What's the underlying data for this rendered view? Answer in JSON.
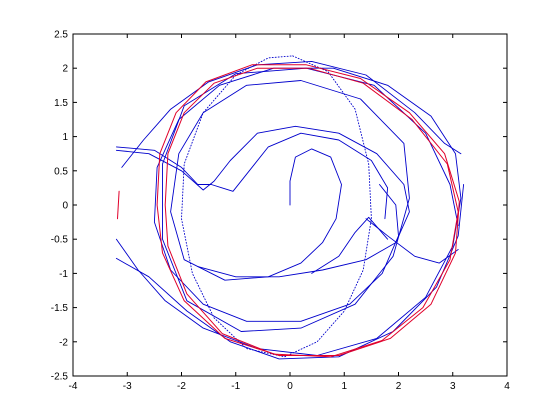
{
  "chart_data": {
    "type": "line",
    "xlim": [
      -4,
      4
    ],
    "ylim": [
      -2.5,
      2.5
    ],
    "x_ticks": [
      "-4",
      "-3",
      "-2",
      "-1",
      "0",
      "1",
      "2",
      "3",
      "4"
    ],
    "y_ticks": [
      "2.5",
      "2",
      "1.5",
      "1",
      "0.5",
      "0",
      "-0.5",
      "-1",
      "-1.5",
      "-2",
      "-2.5"
    ],
    "grid": false,
    "legend": "none",
    "colors": {
      "trajectory": "#0000cc",
      "limit_cycle": "#e0002a",
      "axes": "#000000"
    },
    "series": [
      {
        "style": "solid",
        "color": "trajectory",
        "points": [
          [
            0,
            0
          ],
          [
            0,
            0.35
          ],
          [
            0.1,
            0.7
          ],
          [
            0.4,
            0.82
          ],
          [
            0.75,
            0.7
          ],
          [
            0.95,
            0.3
          ],
          [
            0.85,
            -0.2
          ],
          [
            0.6,
            -0.55
          ],
          [
            0.2,
            -0.85
          ],
          [
            -0.4,
            -1.05
          ],
          [
            -1.2,
            -1.1
          ],
          [
            -1.95,
            -0.8
          ],
          [
            -2.2,
            -0.1
          ],
          [
            -2.05,
            0.75
          ],
          [
            -1.6,
            1.35
          ],
          [
            -0.8,
            1.75
          ],
          [
            0.2,
            1.82
          ],
          [
            1.3,
            1.55
          ],
          [
            2.1,
            0.9
          ],
          [
            2.2,
            0.1
          ],
          [
            1.9,
            -0.75
          ],
          [
            1.2,
            -1.45
          ],
          [
            0.2,
            -1.8
          ],
          [
            -0.9,
            -1.85
          ],
          [
            -1.9,
            -1.4
          ],
          [
            -2.35,
            -0.5
          ],
          [
            -2.35,
            0.6
          ],
          [
            -1.95,
            1.45
          ],
          [
            -1.0,
            1.92
          ],
          [
            0.3,
            2.0
          ],
          [
            1.55,
            1.75
          ],
          [
            2.5,
            1.05
          ],
          [
            2.95,
            0.3
          ],
          [
            3.1,
            -0.3
          ]
        ]
      },
      {
        "style": "solid",
        "color": "trajectory",
        "points": [
          [
            -3.1,
            0.55
          ],
          [
            -2.7,
            0.95
          ],
          [
            -2.2,
            1.4
          ],
          [
            -1.5,
            1.8
          ],
          [
            -0.6,
            2.05
          ],
          [
            0.4,
            2.1
          ],
          [
            1.4,
            1.9
          ],
          [
            2.3,
            1.35
          ],
          [
            2.85,
            0.9
          ],
          [
            3.15,
            0.75
          ]
        ]
      },
      {
        "style": "solid",
        "color": "trajectory",
        "points": [
          [
            -3.2,
            0.8
          ],
          [
            -2.6,
            0.75
          ],
          [
            -2.0,
            0.5
          ],
          [
            -1.6,
            0.22
          ],
          [
            -1.4,
            0.35
          ],
          [
            -1.1,
            0.65
          ],
          [
            -0.6,
            1.05
          ],
          [
            0.1,
            1.15
          ],
          [
            0.9,
            1.05
          ],
          [
            1.6,
            0.75
          ],
          [
            2.1,
            0.3
          ],
          [
            2.2,
            -0.1
          ],
          [
            1.95,
            -0.55
          ],
          [
            1.4,
            -0.8
          ],
          [
            0.6,
            -0.95
          ],
          [
            -0.2,
            -1.05
          ],
          [
            -1.0,
            -1.05
          ],
          [
            -1.7,
            -0.9
          ]
        ]
      },
      {
        "style": "solid",
        "color": "trajectory",
        "points": [
          [
            -3.2,
            0.85
          ],
          [
            -2.5,
            0.8
          ],
          [
            -2.0,
            0.55
          ],
          [
            -1.7,
            0.3
          ],
          [
            -1.45,
            0.3
          ],
          [
            -1.25,
            0.25
          ],
          [
            -1.05,
            0.2
          ],
          [
            -0.8,
            0.45
          ],
          [
            -0.4,
            0.85
          ],
          [
            0.2,
            1.05
          ],
          [
            0.9,
            0.95
          ],
          [
            1.5,
            0.65
          ],
          [
            1.8,
            0.25
          ],
          [
            1.75,
            -0.2
          ]
        ]
      },
      {
        "style": "solid",
        "color": "trajectory",
        "points": [
          [
            -3.2,
            -0.5
          ],
          [
            -2.8,
            -0.95
          ],
          [
            -2.3,
            -1.4
          ],
          [
            -1.6,
            -1.8
          ],
          [
            -0.6,
            -2.1
          ],
          [
            0.5,
            -2.2
          ],
          [
            1.6,
            -1.95
          ],
          [
            2.5,
            -1.35
          ],
          [
            3.0,
            -0.6
          ],
          [
            3.15,
            0.1
          ],
          [
            3.05,
            0.75
          ],
          [
            2.6,
            1.3
          ],
          [
            1.8,
            1.75
          ],
          [
            0.8,
            2.0
          ],
          [
            -0.3,
            2.0
          ],
          [
            -1.3,
            1.75
          ],
          [
            -2.05,
            1.25
          ],
          [
            -2.45,
            0.55
          ],
          [
            -2.5,
            -0.25
          ],
          [
            -2.2,
            -0.95
          ],
          [
            -1.6,
            -1.45
          ],
          [
            -0.8,
            -1.7
          ],
          [
            0.2,
            -1.7
          ],
          [
            1.1,
            -1.45
          ],
          [
            1.7,
            -1.0
          ],
          [
            2.0,
            -0.45
          ],
          [
            1.95,
            0.0
          ],
          [
            1.65,
            0.3
          ]
        ]
      },
      {
        "style": "solid",
        "color": "trajectory",
        "points": [
          [
            -3.2,
            -0.78
          ],
          [
            -2.6,
            -1.05
          ],
          [
            -1.9,
            -1.55
          ],
          [
            -1.1,
            -2.0
          ],
          [
            -0.2,
            -2.25
          ],
          [
            0.9,
            -2.22
          ],
          [
            1.9,
            -1.85
          ],
          [
            2.7,
            -1.2
          ],
          [
            3.1,
            -0.45
          ],
          [
            3.2,
            0.3
          ]
        ]
      },
      {
        "style": "solid",
        "color": "trajectory",
        "points": [
          [
            1.8,
            -0.5
          ],
          [
            1.45,
            -0.18
          ],
          [
            1.2,
            -0.4
          ],
          [
            0.9,
            -0.75
          ],
          [
            0.4,
            -1.0
          ]
        ]
      },
      {
        "style": "solid",
        "color": "trajectory",
        "points": [
          [
            1.4,
            -0.2
          ],
          [
            1.8,
            -0.45
          ],
          [
            2.3,
            -0.75
          ],
          [
            2.75,
            -0.85
          ],
          [
            3.1,
            -0.65
          ]
        ]
      },
      {
        "style": "dotted",
        "color": "trajectory",
        "points": [
          [
            0.05,
            2.18
          ],
          [
            0.7,
            1.95
          ],
          [
            1.2,
            1.4
          ],
          [
            1.45,
            0.6
          ],
          [
            1.5,
            -0.2
          ],
          [
            1.35,
            -0.95
          ],
          [
            1.0,
            -1.55
          ],
          [
            0.5,
            -2.0
          ],
          [
            -0.1,
            -2.22
          ],
          [
            -0.8,
            -2.1
          ],
          [
            -1.4,
            -1.65
          ],
          [
            -1.8,
            -1.0
          ],
          [
            -2.0,
            -0.2
          ],
          [
            -1.95,
            0.6
          ],
          [
            -1.6,
            1.35
          ],
          [
            -1.0,
            1.9
          ],
          [
            -0.4,
            2.15
          ],
          [
            0.05,
            2.18
          ]
        ]
      },
      {
        "style": "solid",
        "color": "limit_cycle",
        "points": [
          [
            -2.45,
            0.0
          ],
          [
            -2.4,
            0.75
          ],
          [
            -2.1,
            1.35
          ],
          [
            -1.55,
            1.8
          ],
          [
            -0.7,
            2.05
          ],
          [
            0.3,
            2.05
          ],
          [
            1.3,
            1.85
          ],
          [
            2.2,
            1.35
          ],
          [
            2.85,
            0.75
          ],
          [
            3.12,
            0.05
          ],
          [
            3.05,
            -0.7
          ],
          [
            2.6,
            -1.45
          ],
          [
            1.85,
            -1.95
          ],
          [
            0.9,
            -2.2
          ],
          [
            -0.2,
            -2.2
          ],
          [
            -1.2,
            -1.95
          ],
          [
            -1.95,
            -1.4
          ],
          [
            -2.35,
            -0.7
          ],
          [
            -2.45,
            0.0
          ]
        ]
      },
      {
        "style": "solid",
        "color": "limit_cycle",
        "points": [
          [
            -2.3,
            0.0
          ],
          [
            -2.25,
            0.75
          ],
          [
            -1.95,
            1.35
          ],
          [
            -1.4,
            1.78
          ],
          [
            -0.6,
            2.0
          ],
          [
            0.35,
            2.0
          ],
          [
            1.35,
            1.78
          ],
          [
            2.25,
            1.25
          ],
          [
            2.9,
            0.6
          ],
          [
            3.1,
            -0.1
          ],
          [
            2.95,
            -0.8
          ],
          [
            2.45,
            -1.5
          ],
          [
            1.7,
            -1.98
          ],
          [
            0.75,
            -2.22
          ],
          [
            -0.3,
            -2.18
          ],
          [
            -1.25,
            -1.88
          ],
          [
            -1.9,
            -1.3
          ],
          [
            -2.25,
            -0.6
          ],
          [
            -2.3,
            0.0
          ]
        ]
      },
      {
        "style": "solid",
        "color": "limit_cycle",
        "points": [
          [
            -3.18,
            -0.2
          ],
          [
            -3.15,
            0.2
          ]
        ]
      }
    ]
  }
}
